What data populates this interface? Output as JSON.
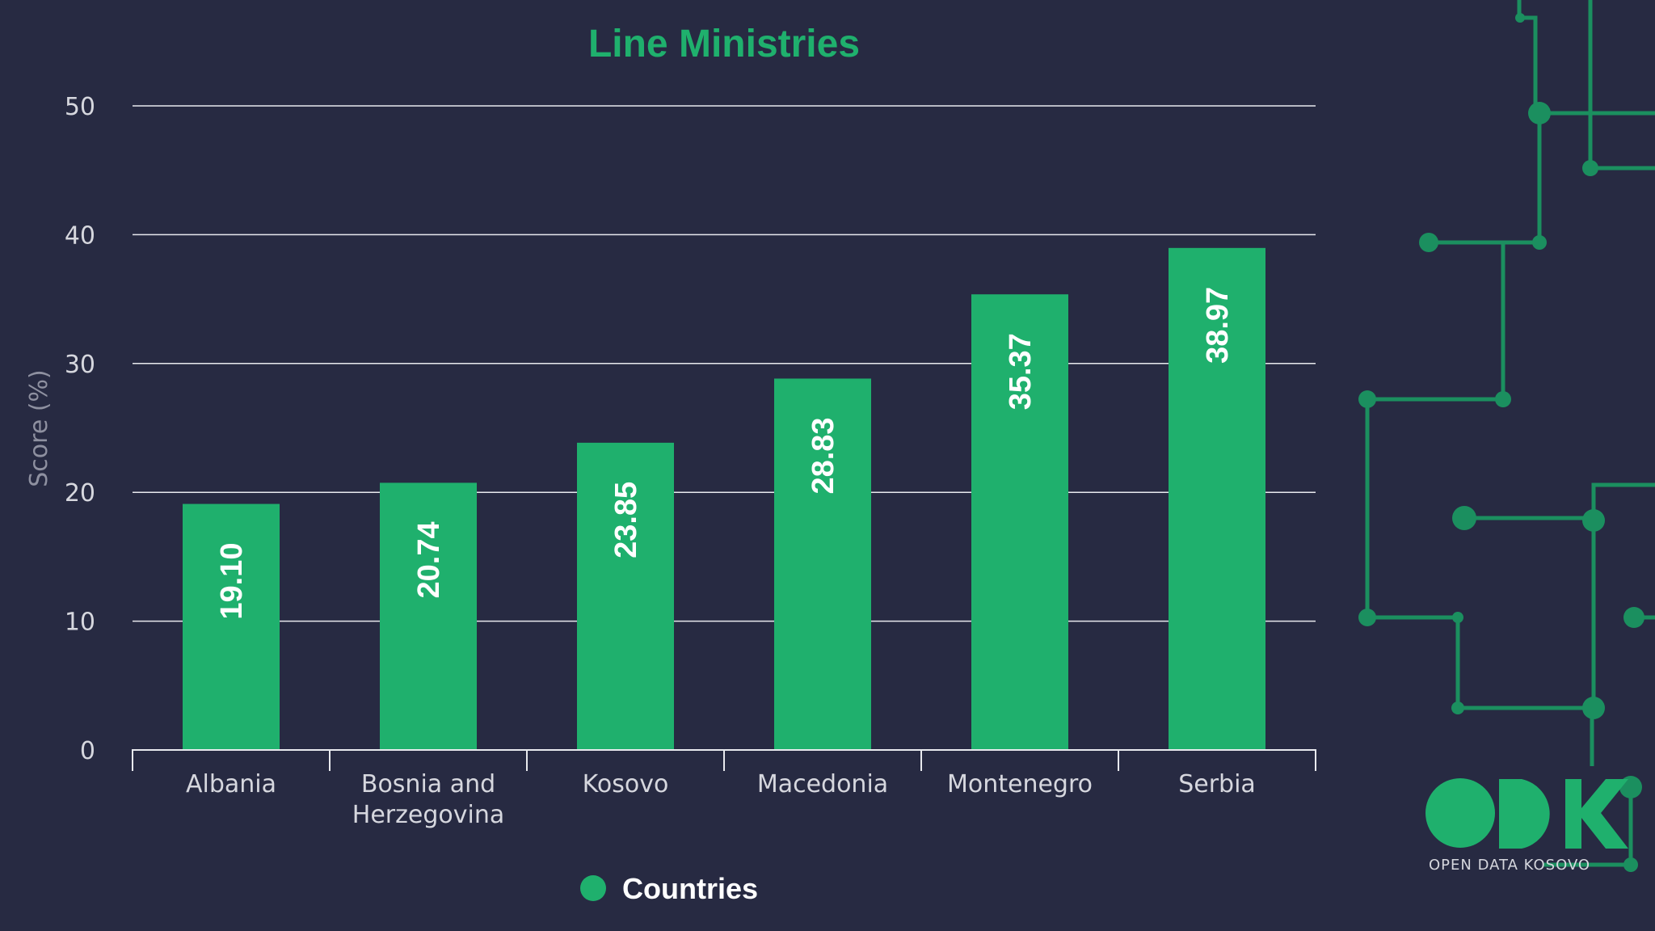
{
  "colors": {
    "background": "#272a42",
    "bar": "#1fb06d",
    "title": "#1fb06d",
    "grid": "#e8e9ee",
    "circuit": "#1b8f5f"
  },
  "chart_data": {
    "type": "bar",
    "title": "Line Ministries",
    "xlabel": "",
    "ylabel": "Score (%)",
    "ylim": [
      0,
      50
    ],
    "yticks": [
      "0",
      "10",
      "20",
      "30",
      "40",
      "50"
    ],
    "grid": true,
    "categories": [
      [
        "Albania"
      ],
      [
        "Bosnia and",
        "Herzegovina"
      ],
      [
        "Kosovo"
      ],
      [
        "Macedonia"
      ],
      [
        "Montenegro"
      ],
      [
        "Serbia"
      ]
    ],
    "values": [
      19.1,
      20.74,
      23.85,
      28.83,
      35.37,
      38.97
    ],
    "value_labels": [
      "19.10",
      "20.74",
      "23.85",
      "28.83",
      "35.37",
      "38.97"
    ],
    "legend": {
      "position": "bottom-center",
      "entries": [
        "Countries"
      ]
    }
  },
  "branding": {
    "logo_letters": "ODK",
    "logo_caption": "OPEN DATA KOSOVO"
  }
}
